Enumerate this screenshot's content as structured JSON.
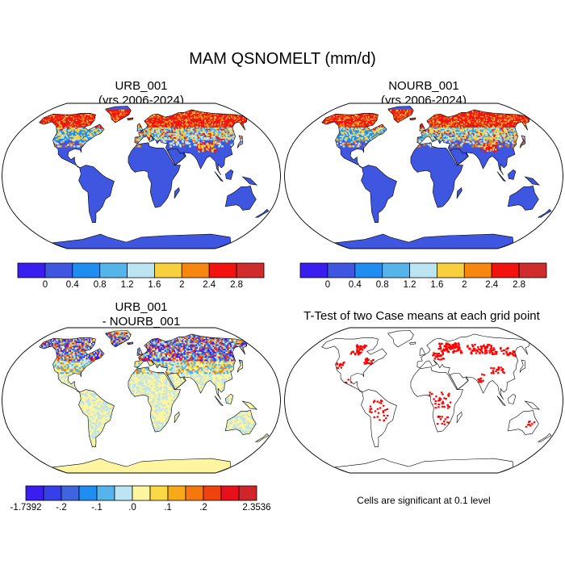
{
  "figure": {
    "title": "MAM QSNOMELT (mm/d)"
  },
  "panels": [
    {
      "id": "urb",
      "title_line1": "URB_001",
      "title_line2": "(yrs 2006-2024)",
      "map_style": "field"
    },
    {
      "id": "nourb",
      "title_line1": "NOURB_001",
      "title_line2": "(yrs 2006-2024)",
      "map_style": "field"
    },
    {
      "id": "diff",
      "title_line1": "URB_001",
      "title_line2": "- NOURB_001",
      "map_style": "difference"
    },
    {
      "id": "ttest",
      "title_line1": "T-Test of two Case means at each grid point",
      "title_line2": "",
      "map_style": "significance",
      "note": "Cells are significant at 0.1 level"
    }
  ],
  "colorbar_main": {
    "colors": [
      "#3a1ef0",
      "#3f57e0",
      "#1e8ef0",
      "#55b4ea",
      "#bce4f2",
      "#f8cf3c",
      "#f7870e",
      "#f2120f",
      "#d02c2c"
    ],
    "labels": [
      "0",
      "0.4",
      "0.8",
      "1.2",
      "1.6",
      "2",
      "2.4",
      "2.8"
    ]
  },
  "colorbar_diff": {
    "colors": [
      "#3a1ef0",
      "#3540e8",
      "#3f64df",
      "#1e8ef0",
      "#55b4ea",
      "#bce4f2",
      "#fdf5a0",
      "#fbd944",
      "#f8a918",
      "#f6780d",
      "#f2420c",
      "#e8101a",
      "#d0262a"
    ],
    "labels": [
      "-1.7392",
      "-.2",
      "-.1",
      ".0",
      ".1",
      ".2",
      "2.3536"
    ]
  },
  "colors": {
    "ocean": "#ffffff",
    "coast": "#000000",
    "land_field": "#3f57e0",
    "land_diff": "#fdf5a0",
    "significant": "#ff0000"
  }
}
